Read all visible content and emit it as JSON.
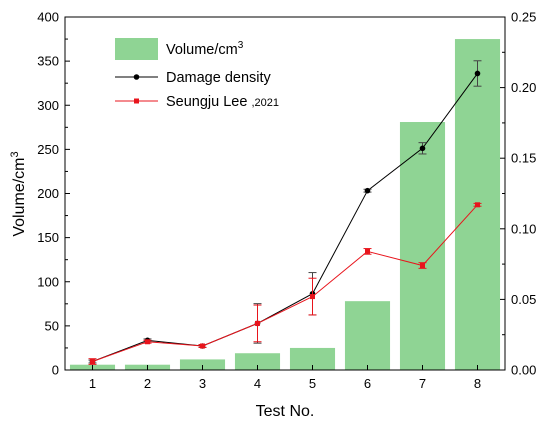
{
  "chart_data": {
    "type": "bar",
    "categories": [
      "1",
      "2",
      "3",
      "4",
      "5",
      "6",
      "7",
      "8"
    ],
    "xlabel": "Test No.",
    "ylabel_left": "Volume/cm",
    "ylabel_left_sup": "3",
    "ylabel_right": "",
    "ylim_left": [
      0,
      400
    ],
    "ylim_right": [
      0,
      0.25
    ],
    "left_ticks": [
      "0",
      "50",
      "100",
      "150",
      "200",
      "250",
      "300",
      "350",
      "400"
    ],
    "right_ticks": [
      "0.00",
      "0.05",
      "0.10",
      "0.15",
      "0.20",
      "0.25"
    ],
    "grid": false,
    "legend_position": "top-left",
    "series": [
      {
        "name": "Volume/cm",
        "name_sup": "3",
        "kind": "bar",
        "axis": "left",
        "color": "#8fd494",
        "values": [
          6,
          6,
          12,
          19,
          25,
          78,
          281,
          375
        ]
      },
      {
        "name": "Damage density",
        "kind": "line",
        "axis": "right",
        "color": "#000000",
        "marker": "circle",
        "values": [
          0.006,
          0.021,
          0.017,
          0.033,
          0.054,
          0.127,
          0.157,
          0.21
        ],
        "errors": [
          0.001,
          0.001,
          0.001,
          0.014,
          0.015,
          0.001,
          0.004,
          0.009
        ]
      },
      {
        "name": "Seungju Lee",
        "name_suffix": ",2021",
        "kind": "line",
        "axis": "right",
        "color": "#e8141c",
        "marker": "square",
        "values": [
          0.006,
          0.02,
          0.017,
          0.033,
          0.052,
          0.084,
          0.074,
          0.117
        ],
        "errors": [
          0.002,
          0.001,
          0.001,
          0.013,
          0.013,
          0.002,
          0.002,
          0.001
        ]
      }
    ]
  }
}
